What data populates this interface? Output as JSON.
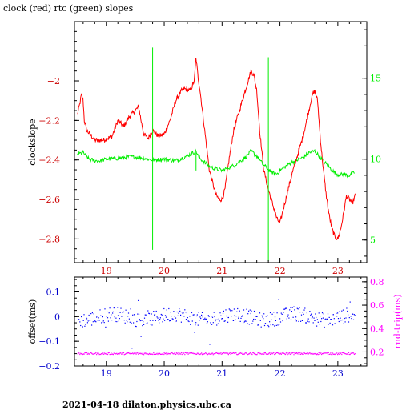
{
  "header": {
    "title": "clock (red) rtc (green) slopes"
  },
  "footer": {
    "text": "2021-04-18 dilaton.physics.ubc.ca"
  },
  "colors": {
    "clock": "#ff0000",
    "rtc": "#00ee00",
    "offset": "#0000ff",
    "rndtrip": "#ff00ff",
    "axis_left_bottom": "#cc0000",
    "axis_blue": "#0000cc"
  },
  "chart_data": [
    {
      "type": "line",
      "title": "clock (red) rtc (green) slopes",
      "xlabel": "",
      "ylabel": "clockslope",
      "y2label": "",
      "xlim": [
        18.45,
        23.5
      ],
      "ylim": [
        -2.92,
        -1.7
      ],
      "y2lim": [
        3.6,
        18.5
      ],
      "x_ticks": [
        19,
        20,
        21,
        22,
        23
      ],
      "y_ticks": [
        -2.8,
        -2.6,
        -2.4,
        -2.2,
        -2.0
      ],
      "y_tick_labels": [
        "−2.8",
        "−2.6",
        "−2.4",
        "−2.2",
        "−2"
      ],
      "y2_ticks": [
        5,
        10,
        15
      ],
      "grid": false,
      "series": [
        {
          "name": "clock",
          "axis": "left",
          "x": [
            18.5,
            18.54,
            18.57,
            18.6,
            18.62,
            18.66,
            18.75,
            18.8,
            18.95,
            19.1,
            19.2,
            19.3,
            19.4,
            19.5,
            19.56,
            19.6,
            19.65,
            19.72,
            19.8,
            19.9,
            20.0,
            20.1,
            20.2,
            20.3,
            20.35,
            20.45,
            20.52,
            20.55,
            20.58,
            20.62,
            20.7,
            20.78,
            20.85,
            20.9,
            20.95,
            21.0,
            21.05,
            21.12,
            21.2,
            21.3,
            21.4,
            21.5,
            21.55,
            21.6,
            21.65,
            21.72,
            21.8,
            21.85,
            21.9,
            21.95,
            22.0,
            22.1,
            22.2,
            22.3,
            22.4,
            22.5,
            22.55,
            22.6,
            22.65,
            22.7,
            22.75,
            22.8,
            22.85,
            22.9,
            22.95,
            23.0,
            23.05,
            23.1,
            23.15,
            23.2,
            23.25,
            23.3
          ],
          "values": [
            -2.17,
            -2.12,
            -2.07,
            -2.1,
            -2.2,
            -2.25,
            -2.28,
            -2.3,
            -2.3,
            -2.28,
            -2.2,
            -2.23,
            -2.18,
            -2.15,
            -2.13,
            -2.2,
            -2.27,
            -2.29,
            -2.25,
            -2.28,
            -2.27,
            -2.2,
            -2.1,
            -2.05,
            -2.04,
            -2.05,
            -2.0,
            -1.88,
            -1.97,
            -2.05,
            -2.25,
            -2.45,
            -2.53,
            -2.58,
            -2.6,
            -2.6,
            -2.55,
            -2.4,
            -2.25,
            -2.15,
            -2.05,
            -1.95,
            -1.97,
            -2.05,
            -2.25,
            -2.45,
            -2.55,
            -2.6,
            -2.65,
            -2.7,
            -2.72,
            -2.6,
            -2.48,
            -2.38,
            -2.28,
            -2.15,
            -2.08,
            -2.05,
            -2.1,
            -2.3,
            -2.45,
            -2.58,
            -2.68,
            -2.75,
            -2.79,
            -2.8,
            -2.75,
            -2.67,
            -2.58,
            -2.6,
            -2.62,
            -2.58
          ]
        },
        {
          "name": "rtc",
          "axis": "right",
          "x": [
            18.5,
            18.6,
            18.7,
            18.8,
            18.9,
            19.0,
            19.2,
            19.4,
            19.6,
            19.8,
            20.0,
            20.2,
            20.4,
            20.55,
            20.6,
            20.7,
            20.8,
            21.0,
            21.2,
            21.4,
            21.5,
            21.6,
            21.7,
            21.85,
            21.95,
            22.0,
            22.2,
            22.4,
            22.5,
            22.6,
            22.7,
            22.8,
            22.9,
            23.0,
            23.1,
            23.2,
            23.3
          ],
          "values": [
            10.3,
            10.4,
            10.0,
            9.9,
            9.9,
            10.0,
            10.05,
            10.15,
            10.1,
            9.95,
            10.0,
            9.9,
            10.2,
            10.5,
            10.1,
            9.8,
            9.5,
            9.3,
            9.6,
            10.1,
            10.5,
            10.2,
            9.7,
            9.2,
            9.1,
            9.3,
            9.8,
            10.1,
            10.4,
            10.5,
            10.1,
            9.7,
            9.3,
            9.05,
            9.05,
            9.0,
            9.2
          ]
        }
      ],
      "rtc_spikes": [
        {
          "x": 19.8,
          "from": 4.4,
          "to": 16.9
        },
        {
          "x": 21.8,
          "from": 3.7,
          "to": 16.3
        },
        {
          "x": 20.55,
          "from": 9.3,
          "to": 10.5
        }
      ]
    },
    {
      "type": "scatter",
      "xlabel": "",
      "ylabel": "offset(ms)",
      "y2label": "rnd-trip(ms)",
      "xlim": [
        18.45,
        23.5
      ],
      "ylim": [
        -0.2,
        0.16
      ],
      "y2lim": [
        0.08,
        0.84
      ],
      "x_ticks": [
        19,
        20,
        21,
        22,
        23
      ],
      "y_ticks": [
        -0.2,
        -0.1,
        0,
        0.1
      ],
      "y_tick_labels": [
        "−0.2",
        "−0.1",
        "0",
        "0.1"
      ],
      "y2_ticks": [
        0.2,
        0.4,
        0.6,
        0.8
      ],
      "grid": false,
      "series": [
        {
          "name": "offset",
          "axis": "left",
          "x_range": [
            18.5,
            23.3
          ],
          "center": 0.0,
          "spread": 0.03
        },
        {
          "name": "rnd-trip",
          "axis": "right",
          "x_range": [
            18.5,
            23.3
          ],
          "center": 0.19,
          "spread": 0.008
        }
      ]
    }
  ]
}
